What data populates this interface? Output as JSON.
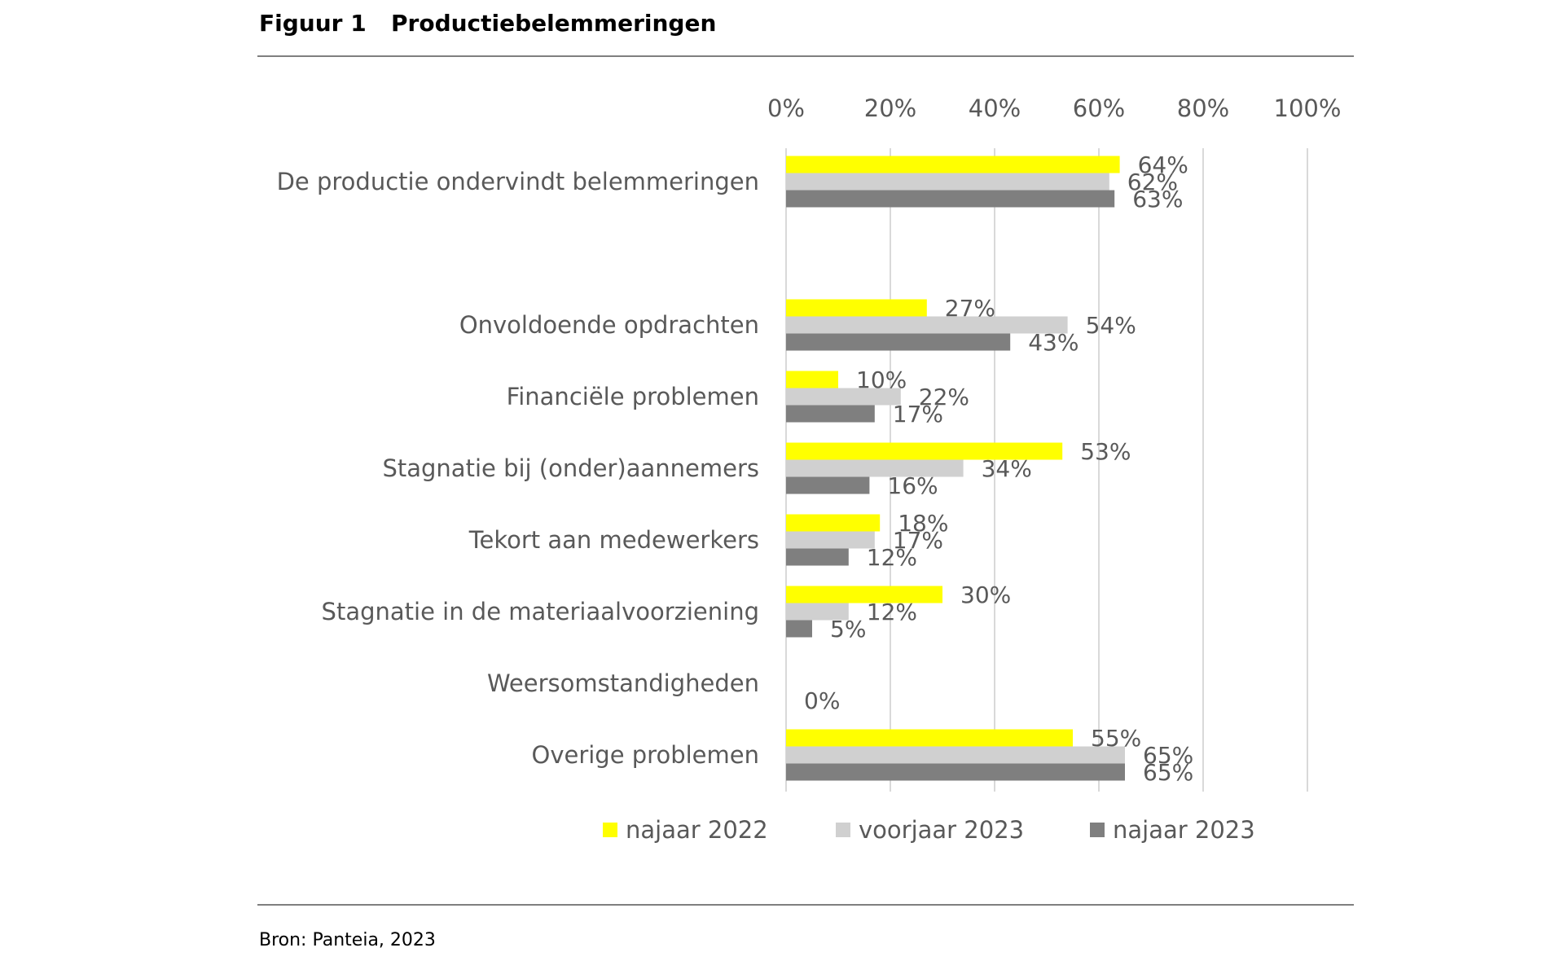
{
  "figure": {
    "number": "Figuur 1",
    "title": "Productiebelemmeringen",
    "source": "Bron: Panteia, 2023"
  },
  "chart_data": {
    "type": "bar",
    "orientation": "horizontal",
    "categories": [
      "De productie ondervindt belemmeringen",
      "Onvoldoende opdrachten",
      "Financiële problemen",
      "Stagnatie bij (onder)aannemers",
      "Tekort aan medewerkers",
      "Stagnatie in de materiaalvoorziening",
      "Weersomstandigheden",
      "Overige problemen"
    ],
    "series": [
      {
        "name": "najaar 2022",
        "color": "#ffff00",
        "values": [
          64,
          27,
          10,
          53,
          18,
          30,
          0,
          55
        ]
      },
      {
        "name": "voorjaar 2023",
        "color": "#d0d0d0",
        "values": [
          62,
          54,
          22,
          34,
          17,
          12,
          0,
          65
        ]
      },
      {
        "name": "najaar 2023",
        "color": "#7f7f7f",
        "values": [
          63,
          43,
          17,
          16,
          12,
          5,
          0,
          65
        ]
      }
    ],
    "value_labels": [
      [
        "64%",
        "62%",
        "63%"
      ],
      [
        "27%",
        "54%",
        "43%"
      ],
      [
        "10%",
        "22%",
        "17%"
      ],
      [
        "53%",
        "34%",
        "16%"
      ],
      [
        "18%",
        "17%",
        "12%"
      ],
      [
        "30%",
        "12%",
        "5%"
      ],
      [
        "",
        "",
        "0%"
      ],
      [
        "55%",
        "65%",
        "65%"
      ]
    ],
    "xlim": [
      0,
      100
    ],
    "x_ticks": [
      "0%",
      "20%",
      "40%",
      "60%",
      "80%",
      "100%"
    ],
    "x_tick_values": [
      0,
      20,
      40,
      60,
      80,
      100
    ],
    "x_axis_position": "top",
    "grid": true,
    "gridline_color": "#d9d9d9",
    "legend_position": "bottom"
  }
}
